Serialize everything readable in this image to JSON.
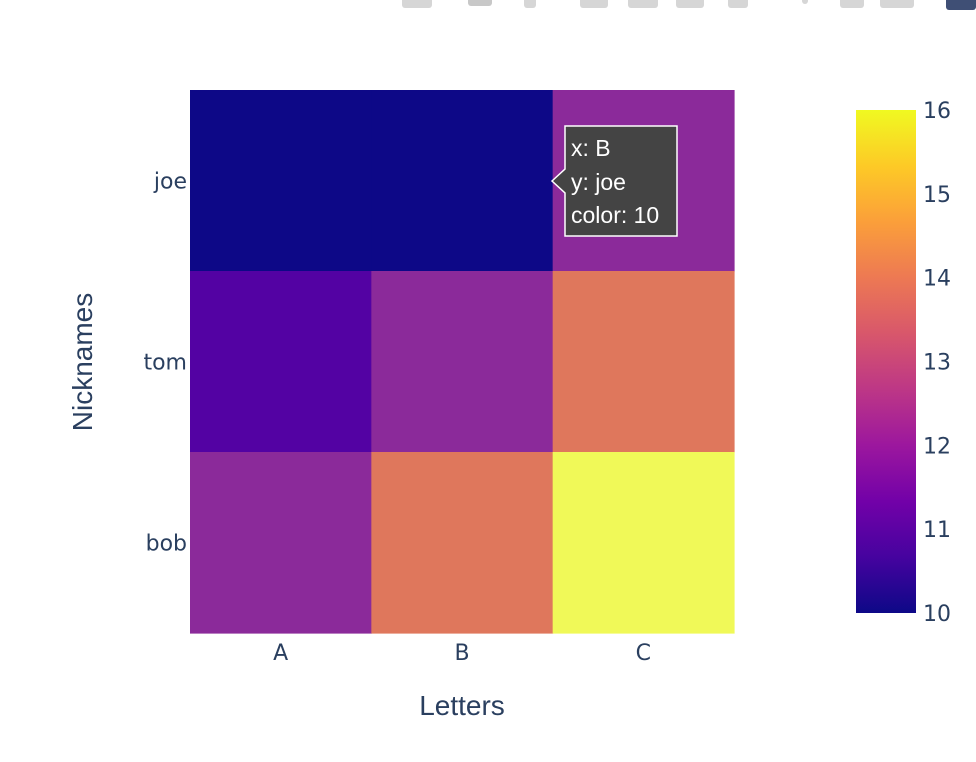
{
  "chart_data": {
    "type": "heatmap",
    "x": [
      "A",
      "B",
      "C"
    ],
    "y": [
      "joe",
      "tom",
      "bob"
    ],
    "z": [
      [
        10,
        10,
        12
      ],
      [
        11,
        12,
        14
      ],
      [
        12,
        14,
        16
      ]
    ],
    "xlabel": "Letters",
    "ylabel": "Nicknames",
    "colorscale": "Plasma",
    "colorbar": {
      "range": [
        10,
        16
      ],
      "ticks": [
        10,
        11,
        12,
        13,
        14,
        15,
        16
      ]
    },
    "grid": false,
    "colors": {
      "10": "#0d0887",
      "11": "#5302a3",
      "12": "#8b2a9a",
      "14": "#df775c",
      "16": "#f0f958"
    }
  },
  "tooltip": {
    "x_line": "x: B",
    "y_line": "y: joe",
    "color_line": "color: 10"
  },
  "modebar": {
    "icons": [
      "camera-icon",
      "zoom-icon",
      "pan-icon",
      "box-select-icon",
      "lasso-icon",
      "zoom-in-icon",
      "zoom-out-icon",
      "autoscale-icon",
      "reset-axes-icon",
      "plotly-logo-icon"
    ]
  }
}
